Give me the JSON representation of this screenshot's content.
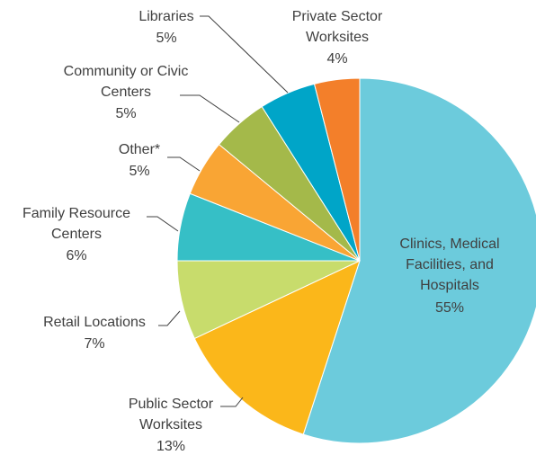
{
  "chart_data": {
    "type": "pie",
    "categories": [
      "Clinics, Medical Facilities, and Hospitals",
      "Public Sector Worksites",
      "Retail Locations",
      "Family Resource Centers",
      "Other*",
      "Community or Civic Centers",
      "Libraries",
      "Private Sector Worksites"
    ],
    "values": [
      55,
      13,
      7,
      6,
      5,
      5,
      5,
      4
    ],
    "value_labels": [
      "55%",
      "13%",
      "7%",
      "6%",
      "5%",
      "5%",
      "5%",
      "4%"
    ],
    "colors": [
      "#6ccbdc",
      "#fbb71a",
      "#c8dc6c",
      "#36bfc6",
      "#f9a534",
      "#a4b94a",
      "#00a5c8",
      "#f37f2a"
    ]
  }
}
